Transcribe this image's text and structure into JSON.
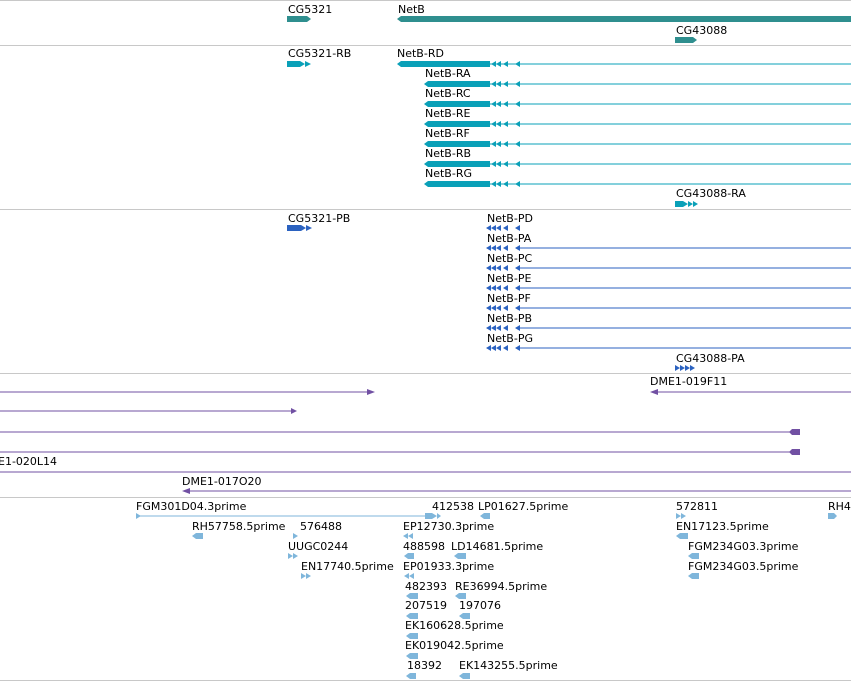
{
  "colors": {
    "gene": "#2f8f8f",
    "transcript": "#0aa0b8",
    "protein": "#2b62c0",
    "clone": "#7150a3",
    "est": "#7fb6db",
    "divider": "#c8c8c8"
  },
  "tracks": {
    "genes": [
      {
        "label": "CG5321"
      },
      {
        "label": "NetB"
      },
      {
        "label": "CG43088"
      }
    ],
    "transcripts": [
      {
        "label": "CG5321-RB"
      },
      {
        "label": "NetB-RD"
      },
      {
        "label": "NetB-RA"
      },
      {
        "label": "NetB-RC"
      },
      {
        "label": "NetB-RE"
      },
      {
        "label": "NetB-RF"
      },
      {
        "label": "NetB-RB"
      },
      {
        "label": "NetB-RG"
      },
      {
        "label": "CG43088-RA"
      }
    ],
    "proteins": [
      {
        "label": "CG5321-PB"
      },
      {
        "label": "NetB-PD"
      },
      {
        "label": "NetB-PA"
      },
      {
        "label": "NetB-PC"
      },
      {
        "label": "NetB-PE"
      },
      {
        "label": "NetB-PF"
      },
      {
        "label": "NetB-PB"
      },
      {
        "label": "NetB-PG"
      },
      {
        "label": "CG43088-PA"
      }
    ],
    "clones": [
      {
        "label": "DME1-019F11"
      },
      {
        "label": "E1-020L14"
      },
      {
        "label": "DME1-017O20"
      }
    ],
    "ests": [
      {
        "label": "FGM301D04.3prime"
      },
      {
        "label": "412538"
      },
      {
        "label": "LP01627.5prime"
      },
      {
        "label": "572811"
      },
      {
        "label": "RH4"
      },
      {
        "label": "RH57758.5prime"
      },
      {
        "label": "576488"
      },
      {
        "label": "EP12730.3prime"
      },
      {
        "label": "EN17123.5prime"
      },
      {
        "label": "UUGC0244"
      },
      {
        "label": "488598"
      },
      {
        "label": "LD14681.5prime"
      },
      {
        "label": "FGM234G03.3prime"
      },
      {
        "label": "EN17740.5prime"
      },
      {
        "label": "EP01933.3prime"
      },
      {
        "label": "FGM234G03.5prime"
      },
      {
        "label": "482393"
      },
      {
        "label": "RE36994.5prime"
      },
      {
        "label": "207519"
      },
      {
        "label": "197076"
      },
      {
        "label": "EK160628.5prime"
      },
      {
        "label": "EK019042.5prime"
      },
      {
        "label": "18392"
      },
      {
        "label": "EK143255.5prime"
      }
    ]
  }
}
